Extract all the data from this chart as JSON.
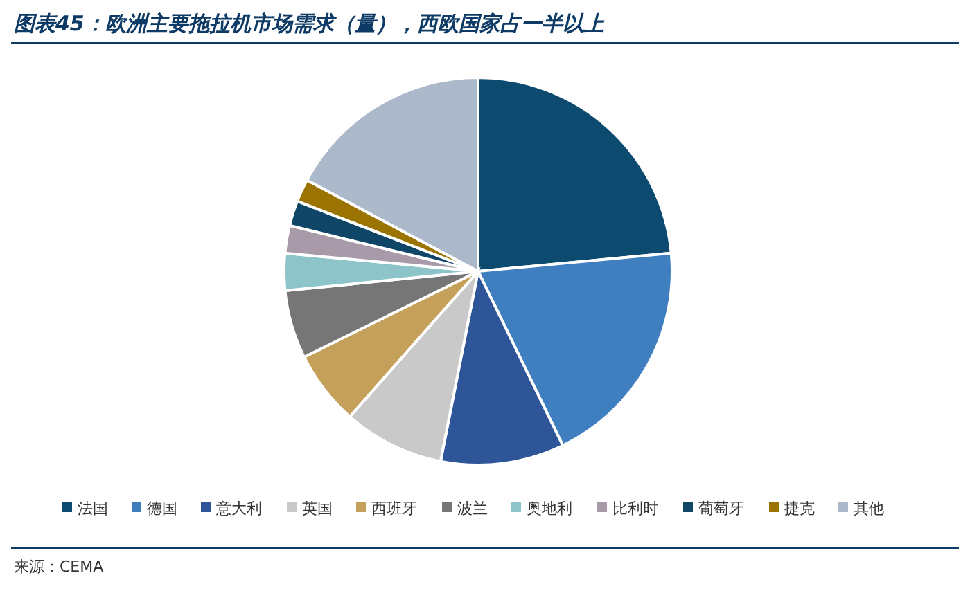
{
  "chart_data": {
    "type": "pie",
    "title": "图表45：欧洲主要拖拉机市场需求（量），西欧国家占一半以上",
    "categories": [
      "法国",
      "德国",
      "意大利",
      "英国",
      "西班牙",
      "波兰",
      "奥地利",
      "比利时",
      "葡萄牙",
      "捷克",
      "其他"
    ],
    "values": [
      23.5,
      19.3,
      10.3,
      8.4,
      6.2,
      5.7,
      3.1,
      2.3,
      2.1,
      1.9,
      17.2
    ],
    "colors": [
      "#0d4a70",
      "#3f7fc0",
      "#2d5597",
      "#c9c9c9",
      "#c5a05a",
      "#767676",
      "#8cc4c9",
      "#a89aa8",
      "#0f4566",
      "#9a7300",
      "#acb9ca"
    ],
    "legend": "bottom",
    "annotations": [
      "来源：CEMA"
    ]
  }
}
